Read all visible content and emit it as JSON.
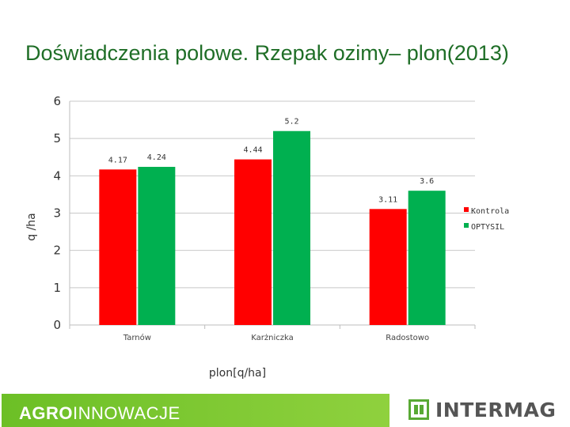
{
  "page": {
    "title": "Doświadczenia polowe. Rzepak ozimy– plon(2013)"
  },
  "chart_data": {
    "type": "bar",
    "categories": [
      "Tarnów",
      "Karżniczka",
      "Radostowo"
    ],
    "series": [
      {
        "name": "Kontrola",
        "values": [
          4.17,
          4.44,
          3.11
        ],
        "color": "#ff0000"
      },
      {
        "name": "OPTYSIL",
        "values": [
          4.24,
          5.2,
          3.6
        ],
        "color": "#00b050"
      }
    ],
    "data_labels": [
      [
        "4.17",
        "4.44",
        "3.11"
      ],
      [
        "4.24",
        "5.2",
        "3.6"
      ]
    ],
    "ylabel": "q /ha",
    "xlabel": "plon[q/ha]",
    "ylim": [
      0,
      6
    ],
    "yticks": [
      0,
      1,
      2,
      3,
      4,
      5,
      6
    ],
    "grid": true,
    "legend_position": "right"
  },
  "footer": {
    "agro_bold": "AGRO",
    "agro_regular": "INNOWACJE",
    "brand": "INTERMAG",
    "brand_icon": "intermag-square-logo-icon",
    "band_color": "#7cc42d"
  }
}
